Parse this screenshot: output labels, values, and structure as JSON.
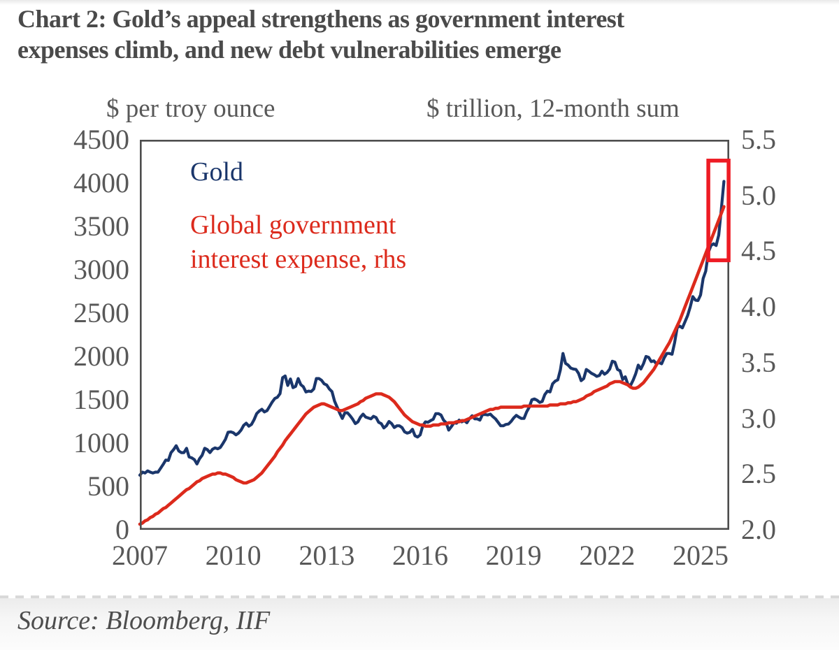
{
  "title": {
    "line1": "Chart 2: Gold’s appeal strengthens as government interest",
    "line2": "expenses climb, and new debt vulnerabilities emerge"
  },
  "left_axis": {
    "unit_label": "$ per troy ounce",
    "ticks": [
      "4500",
      "4000",
      "3500",
      "3000",
      "2500",
      "2000",
      "1500",
      "1000",
      "500",
      "0"
    ]
  },
  "right_axis": {
    "unit_label": "$ trillion, 12-month sum",
    "ticks": [
      "5.5",
      "5.0",
      "4.5",
      "4.0",
      "3.5",
      "3.0",
      "2.5",
      "2.0"
    ]
  },
  "x_axis": {
    "tick_years": [
      2007,
      2010,
      2013,
      2016,
      2019,
      2022,
      2025
    ]
  },
  "legend": {
    "gold_label": "Gold",
    "interest_label": "Global government interest expense, rhs"
  },
  "source": "Source: Bloomberg, IIF",
  "colors": {
    "gold_line": "#1a366b",
    "interest_line": "#dc2a1c",
    "highlight_box": "#ee1b24",
    "frame": "#4e4e4e",
    "text_gray": "#4a4a4a"
  },
  "chart_data": {
    "type": "line",
    "title": "Gold price vs global government interest expense",
    "x_domain": [
      2007.0,
      2025.92
    ],
    "start_year": 2007.0,
    "step_months": 1,
    "left_ylim": [
      0,
      4500
    ],
    "right_ylim": [
      2.0,
      5.5
    ],
    "grid": false,
    "legend_position": "inside-top-left",
    "highlight_box": {
      "year_from": 2025.25,
      "year_to": 2025.9,
      "left_value_top": 4260,
      "left_value_bottom": 3110,
      "note": "red rectangle highlighting the 2025 surge of both lines"
    },
    "series": [
      {
        "id": "gold",
        "name": "Gold",
        "axis": "left",
        "units": "$ per troy ounce",
        "color": "#1a366b",
        "values": [
          630,
          665,
          655,
          680,
          665,
          655,
          665,
          665,
          710,
          755,
          805,
          800,
          890,
          925,
          970,
          910,
          890,
          890,
          940,
          840,
          830,
          810,
          760,
          820,
          860,
          940,
          925,
          890,
          930,
          945,
          935,
          950,
          995,
          1045,
          1125,
          1130,
          1120,
          1095,
          1115,
          1150,
          1205,
          1230,
          1195,
          1215,
          1270,
          1340,
          1370,
          1390,
          1360,
          1375,
          1425,
          1475,
          1515,
          1530,
          1570,
          1755,
          1775,
          1665,
          1740,
          1640,
          1655,
          1745,
          1675,
          1650,
          1590,
          1600,
          1595,
          1625,
          1745,
          1745,
          1725,
          1685,
          1670,
          1625,
          1595,
          1485,
          1415,
          1345,
          1285,
          1350,
          1350,
          1315,
          1275,
          1225,
          1245,
          1300,
          1335,
          1300,
          1290,
          1280,
          1310,
          1295,
          1240,
          1225,
          1175,
          1200,
          1250,
          1225,
          1180,
          1200,
          1200,
          1180,
          1130,
          1115,
          1125,
          1160,
          1085,
          1070,
          1095,
          1200,
          1245,
          1240,
          1260,
          1275,
          1340,
          1340,
          1325,
          1265,
          1235,
          1150,
          1190,
          1235,
          1230,
          1265,
          1245,
          1260,
          1235,
          1285,
          1315,
          1280,
          1280,
          1265,
          1330,
          1330,
          1325,
          1335,
          1305,
          1280,
          1240,
          1200,
          1200,
          1215,
          1220,
          1250,
          1290,
          1320,
          1300,
          1285,
          1285,
          1360,
          1415,
          1500,
          1510,
          1495,
          1470,
          1480,
          1560,
          1600,
          1590,
          1685,
          1715,
          1730,
          1845,
          2035,
          1920,
          1900,
          1865,
          1855,
          1850,
          1805,
          1720,
          1745,
          1850,
          1830,
          1805,
          1790,
          1770,
          1780,
          1830,
          1795,
          1815,
          1855,
          1945,
          1935,
          1850,
          1835,
          1735,
          1765,
          1680,
          1665,
          1725,
          1800,
          1900,
          1855,
          1915,
          2000,
          1990,
          1940,
          1950,
          1915,
          1930,
          1915,
          1985,
          2035,
          2035,
          2025,
          2160,
          2335,
          2350,
          2330,
          2400,
          2470,
          2570,
          2690,
          2650,
          2645,
          2710,
          2900,
          2985,
          3200,
          3280,
          3300,
          3280,
          3400,
          3700,
          4020
        ]
      },
      {
        "id": "interest",
        "name": "Global government interest expense, rhs",
        "axis": "right",
        "units": "$ trillion, 12-month sum",
        "color": "#dc2a1c",
        "values": [
          2.05,
          2.06,
          2.08,
          2.09,
          2.11,
          2.12,
          2.14,
          2.15,
          2.17,
          2.19,
          2.2,
          2.22,
          2.24,
          2.26,
          2.28,
          2.3,
          2.32,
          2.34,
          2.36,
          2.37,
          2.39,
          2.41,
          2.43,
          2.44,
          2.46,
          2.47,
          2.48,
          2.49,
          2.5,
          2.5,
          2.51,
          2.51,
          2.5,
          2.5,
          2.49,
          2.48,
          2.47,
          2.45,
          2.44,
          2.43,
          2.42,
          2.42,
          2.43,
          2.44,
          2.45,
          2.47,
          2.49,
          2.51,
          2.54,
          2.57,
          2.6,
          2.63,
          2.66,
          2.7,
          2.73,
          2.76,
          2.8,
          2.83,
          2.86,
          2.89,
          2.92,
          2.95,
          2.98,
          3.01,
          3.04,
          3.06,
          3.08,
          3.1,
          3.11,
          3.12,
          3.13,
          3.13,
          3.12,
          3.11,
          3.1,
          3.09,
          3.08,
          3.07,
          3.07,
          3.08,
          3.09,
          3.1,
          3.11,
          3.12,
          3.13,
          3.15,
          3.16,
          3.18,
          3.19,
          3.2,
          3.21,
          3.22,
          3.22,
          3.22,
          3.21,
          3.2,
          3.19,
          3.17,
          3.15,
          3.12,
          3.09,
          3.06,
          3.03,
          3.01,
          2.99,
          2.97,
          2.96,
          2.95,
          2.94,
          2.94,
          2.93,
          2.93,
          2.93,
          2.94,
          2.94,
          2.94,
          2.95,
          2.95,
          2.95,
          2.96,
          2.96,
          2.96,
          2.97,
          2.97,
          2.98,
          2.98,
          2.99,
          3.0,
          3.01,
          3.02,
          3.03,
          3.04,
          3.05,
          3.06,
          3.07,
          3.08,
          3.08,
          3.09,
          3.09,
          3.1,
          3.1,
          3.1,
          3.1,
          3.1,
          3.1,
          3.1,
          3.1,
          3.1,
          3.11,
          3.11,
          3.11,
          3.11,
          3.11,
          3.11,
          3.11,
          3.11,
          3.11,
          3.11,
          3.12,
          3.12,
          3.12,
          3.12,
          3.13,
          3.13,
          3.13,
          3.14,
          3.14,
          3.15,
          3.15,
          3.16,
          3.17,
          3.18,
          3.2,
          3.21,
          3.22,
          3.24,
          3.25,
          3.26,
          3.27,
          3.28,
          3.29,
          3.31,
          3.32,
          3.33,
          3.33,
          3.33,
          3.32,
          3.31,
          3.3,
          3.28,
          3.27,
          3.27,
          3.28,
          3.3,
          3.32,
          3.35,
          3.38,
          3.41,
          3.44,
          3.48,
          3.52,
          3.56,
          3.6,
          3.64,
          3.68,
          3.73,
          3.78,
          3.83,
          3.88,
          3.94,
          4.0,
          4.06,
          4.12,
          4.18,
          4.24,
          4.3,
          4.36,
          4.42,
          4.48,
          4.54,
          4.6,
          4.66,
          4.72,
          4.78,
          4.84,
          4.9
        ]
      }
    ]
  }
}
